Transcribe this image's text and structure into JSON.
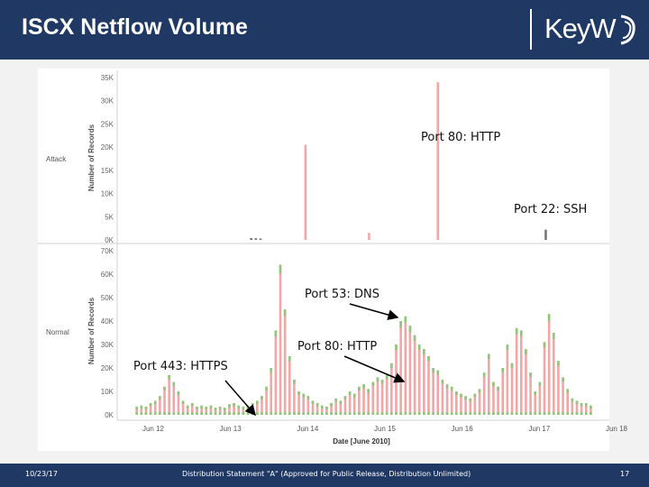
{
  "slide": {
    "title": "ISCX Netflow Volume",
    "logo_text": "KeyW",
    "footer_date": "10/23/17",
    "footer_statement": "Distribution Statement \"A\" (Approved for Public Release, Distribution Unlimited)",
    "footer_page": "17"
  },
  "colors": {
    "header": "#1f3864",
    "bar_pink": "#f2a6a6",
    "bar_green": "#8fc67a",
    "bar_gray": "#777777",
    "arrow": "#000000"
  },
  "callouts": {
    "attack_http": "Port 80: HTTP",
    "attack_ssh": "Port 22: SSH",
    "normal_dns": "Port 53: DNS",
    "normal_http": "Port 80: HTTP",
    "normal_https": "Port 443: HTTPS"
  },
  "chart_data": [
    {
      "type": "bar",
      "row_label": "Attack",
      "ylabel": "Number of Records",
      "ylim": [
        0,
        35000
      ],
      "yticks": [
        "0K",
        "5K",
        "10K",
        "15K",
        "20K",
        "25K",
        "30K",
        "35K"
      ],
      "xlim": [
        0,
        7
      ],
      "grid": false,
      "bars": [
        {
          "x": 1.78,
          "value": 400,
          "color": "gray"
        },
        {
          "x": 1.85,
          "value": 350,
          "color": "gray"
        },
        {
          "x": 1.92,
          "value": 300,
          "color": "gray"
        },
        {
          "x": 2.6,
          "value": 20500,
          "color": "pink"
        },
        {
          "x": 3.56,
          "value": 1500,
          "color": "pink"
        },
        {
          "x": 4.6,
          "value": 34000,
          "color": "pink"
        },
        {
          "x": 6.23,
          "value": 2200,
          "color": "gray"
        }
      ]
    },
    {
      "type": "bar",
      "row_label": "Normal",
      "ylabel": "Number of Records",
      "xlabel": "Date [June 2010]",
      "ylim": [
        0,
        70000
      ],
      "yticks": [
        "0K",
        "10K",
        "20K",
        "30K",
        "40K",
        "50K",
        "60K",
        "70K"
      ],
      "xlim": [
        0,
        7
      ],
      "xticks": [
        "Jun 12",
        "Jun 13",
        "Jun 14",
        "Jun 15",
        "Jun 16",
        "Jun 17",
        "Jun 18"
      ],
      "grid": false,
      "legend": "none",
      "bars": [
        {
          "x": 0.05,
          "value": 3500
        },
        {
          "x": 0.12,
          "value": 4000
        },
        {
          "x": 0.19,
          "value": 3500
        },
        {
          "x": 0.26,
          "value": 5000
        },
        {
          "x": 0.33,
          "value": 6000
        },
        {
          "x": 0.4,
          "value": 8000
        },
        {
          "x": 0.47,
          "value": 12000
        },
        {
          "x": 0.54,
          "value": 17000
        },
        {
          "x": 0.61,
          "value": 14000
        },
        {
          "x": 0.68,
          "value": 10000
        },
        {
          "x": 0.75,
          "value": 6000
        },
        {
          "x": 0.82,
          "value": 4000
        },
        {
          "x": 0.89,
          "value": 5000
        },
        {
          "x": 0.96,
          "value": 3500
        },
        {
          "x": 1.03,
          "value": 4000
        },
        {
          "x": 1.1,
          "value": 3500
        },
        {
          "x": 1.17,
          "value": 4000
        },
        {
          "x": 1.24,
          "value": 3000
        },
        {
          "x": 1.31,
          "value": 3500
        },
        {
          "x": 1.38,
          "value": 3000
        },
        {
          "x": 1.45,
          "value": 4500
        },
        {
          "x": 1.52,
          "value": 5000
        },
        {
          "x": 1.59,
          "value": 4000
        },
        {
          "x": 1.66,
          "value": 3500
        },
        {
          "x": 1.73,
          "value": 4000
        },
        {
          "x": 1.8,
          "value": 5000
        },
        {
          "x": 1.87,
          "value": 6000
        },
        {
          "x": 1.94,
          "value": 8000
        },
        {
          "x": 2.01,
          "value": 12000
        },
        {
          "x": 2.08,
          "value": 20000
        },
        {
          "x": 2.15,
          "value": 36000
        },
        {
          "x": 2.22,
          "value": 64000
        },
        {
          "x": 2.29,
          "value": 45000
        },
        {
          "x": 2.36,
          "value": 25000
        },
        {
          "x": 2.43,
          "value": 15000
        },
        {
          "x": 2.5,
          "value": 10000
        },
        {
          "x": 2.57,
          "value": 9000
        },
        {
          "x": 2.64,
          "value": 8000
        },
        {
          "x": 2.71,
          "value": 6000
        },
        {
          "x": 2.78,
          "value": 5000
        },
        {
          "x": 2.85,
          "value": 4000
        },
        {
          "x": 2.92,
          "value": 3500
        },
        {
          "x": 2.99,
          "value": 5000
        },
        {
          "x": 3.06,
          "value": 7000
        },
        {
          "x": 3.13,
          "value": 6000
        },
        {
          "x": 3.2,
          "value": 8000
        },
        {
          "x": 3.27,
          "value": 10000
        },
        {
          "x": 3.34,
          "value": 9000
        },
        {
          "x": 3.41,
          "value": 12000
        },
        {
          "x": 3.48,
          "value": 13000
        },
        {
          "x": 3.55,
          "value": 11000
        },
        {
          "x": 3.62,
          "value": 14000
        },
        {
          "x": 3.69,
          "value": 16000
        },
        {
          "x": 3.76,
          "value": 15000
        },
        {
          "x": 3.83,
          "value": 17000
        },
        {
          "x": 3.9,
          "value": 22000
        },
        {
          "x": 3.97,
          "value": 30000
        },
        {
          "x": 4.04,
          "value": 40000
        },
        {
          "x": 4.11,
          "value": 42000
        },
        {
          "x": 4.18,
          "value": 38000
        },
        {
          "x": 4.25,
          "value": 34000
        },
        {
          "x": 4.32,
          "value": 30000
        },
        {
          "x": 4.39,
          "value": 28000
        },
        {
          "x": 4.46,
          "value": 25000
        },
        {
          "x": 4.53,
          "value": 20000
        },
        {
          "x": 4.6,
          "value": 19000
        },
        {
          "x": 4.67,
          "value": 15000
        },
        {
          "x": 4.74,
          "value": 13000
        },
        {
          "x": 4.81,
          "value": 12000
        },
        {
          "x": 4.88,
          "value": 10000
        },
        {
          "x": 4.95,
          "value": 9000
        },
        {
          "x": 5.02,
          "value": 8000
        },
        {
          "x": 5.09,
          "value": 7000
        },
        {
          "x": 5.16,
          "value": 9000
        },
        {
          "x": 5.23,
          "value": 11000
        },
        {
          "x": 5.3,
          "value": 18000
        },
        {
          "x": 5.37,
          "value": 26000
        },
        {
          "x": 5.44,
          "value": 14000
        },
        {
          "x": 5.51,
          "value": 12000
        },
        {
          "x": 5.58,
          "value": 20000
        },
        {
          "x": 5.65,
          "value": 30000
        },
        {
          "x": 5.72,
          "value": 22000
        },
        {
          "x": 5.79,
          "value": 37000
        },
        {
          "x": 5.86,
          "value": 36000
        },
        {
          "x": 5.93,
          "value": 28000
        },
        {
          "x": 6.0,
          "value": 18000
        },
        {
          "x": 6.07,
          "value": 10000
        },
        {
          "x": 6.14,
          "value": 14000
        },
        {
          "x": 6.21,
          "value": 31000
        },
        {
          "x": 6.28,
          "value": 43000
        },
        {
          "x": 6.35,
          "value": 35000
        },
        {
          "x": 6.42,
          "value": 23000
        },
        {
          "x": 6.49,
          "value": 16000
        },
        {
          "x": 6.56,
          "value": 11000
        },
        {
          "x": 6.63,
          "value": 7000
        },
        {
          "x": 6.7,
          "value": 6000
        },
        {
          "x": 6.77,
          "value": 5000
        },
        {
          "x": 6.84,
          "value": 5000
        },
        {
          "x": 6.91,
          "value": 4000
        }
      ]
    }
  ]
}
